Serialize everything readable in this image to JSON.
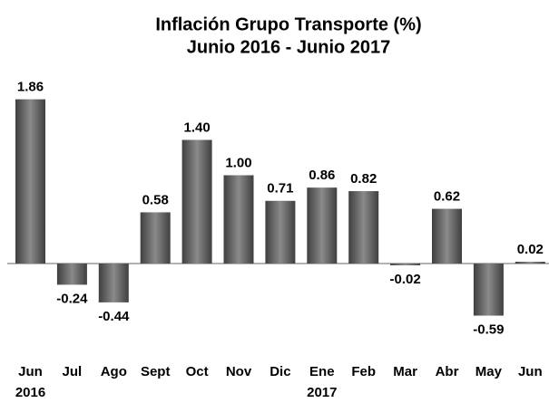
{
  "chart_data": {
    "type": "bar",
    "title": "Inflación Grupo Transporte (%)",
    "subtitle": "Junio 2016 - Junio 2017",
    "categories": [
      "Jun 2016",
      "Jul",
      "Ago",
      "Sept",
      "Oct",
      "Nov",
      "Dic",
      "Ene 2017",
      "Feb",
      "Mar",
      "Abr",
      "May",
      "Jun"
    ],
    "values": [
      1.86,
      -0.24,
      -0.44,
      0.58,
      1.4,
      1.0,
      0.71,
      0.86,
      0.82,
      -0.02,
      0.62,
      -0.59,
      0.02
    ],
    "value_labels": [
      "1.86",
      "-0.24",
      "-0.44",
      "0.58",
      "1.40",
      "1.00",
      "0.71",
      "0.86",
      "0.82",
      "-0.02",
      "0.62",
      "-0.59",
      "0.02"
    ],
    "color": "#6b6b6b"
  }
}
